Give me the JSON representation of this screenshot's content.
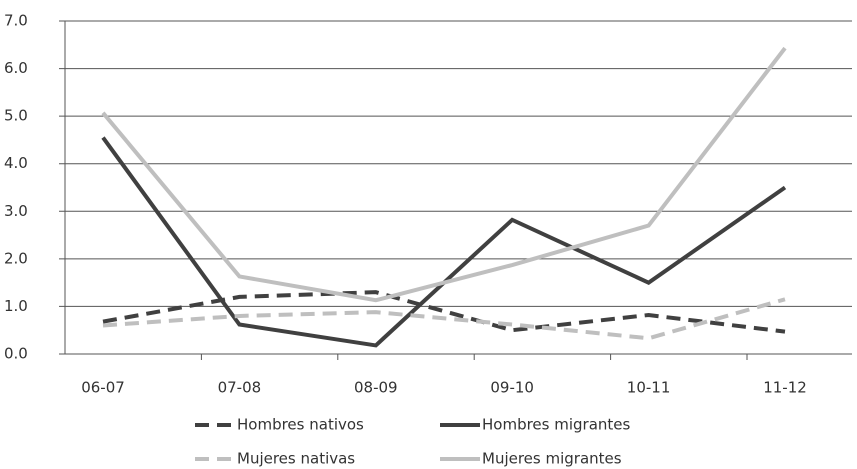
{
  "chart_data": {
    "type": "line",
    "categories": [
      "06-07",
      "07-08",
      "08-09",
      "09-10",
      "10-11",
      "11-12"
    ],
    "series": [
      {
        "name": "Hombres nativos",
        "color": "#404040",
        "dashed": true,
        "values": [
          0.68,
          1.2,
          1.3,
          0.5,
          0.82,
          0.47
        ]
      },
      {
        "name": "Hombres migrantes",
        "color": "#404040",
        "dashed": false,
        "values": [
          4.55,
          0.62,
          0.18,
          2.82,
          1.5,
          3.5
        ]
      },
      {
        "name": "Mujeres nativas",
        "color": "#bfbfbf",
        "dashed": true,
        "values": [
          0.6,
          0.8,
          0.88,
          0.62,
          0.33,
          1.15
        ]
      },
      {
        "name": "Mujeres migrantes",
        "color": "#bfbfbf",
        "dashed": false,
        "values": [
          5.07,
          1.63,
          1.13,
          1.87,
          2.7,
          6.43
        ]
      }
    ],
    "ylim": [
      0,
      7
    ],
    "yticks": [
      {
        "value": 0,
        "label": "0.0"
      },
      {
        "value": 1,
        "label": "1.0"
      },
      {
        "value": 2,
        "label": "2.0"
      },
      {
        "value": 3,
        "label": "3.0"
      },
      {
        "value": 4,
        "label": "4.0"
      },
      {
        "value": 5,
        "label": "5.0"
      },
      {
        "value": 6,
        "label": "6.0"
      },
      {
        "value": 7,
        "label": "7.0"
      }
    ],
    "grid": true
  }
}
